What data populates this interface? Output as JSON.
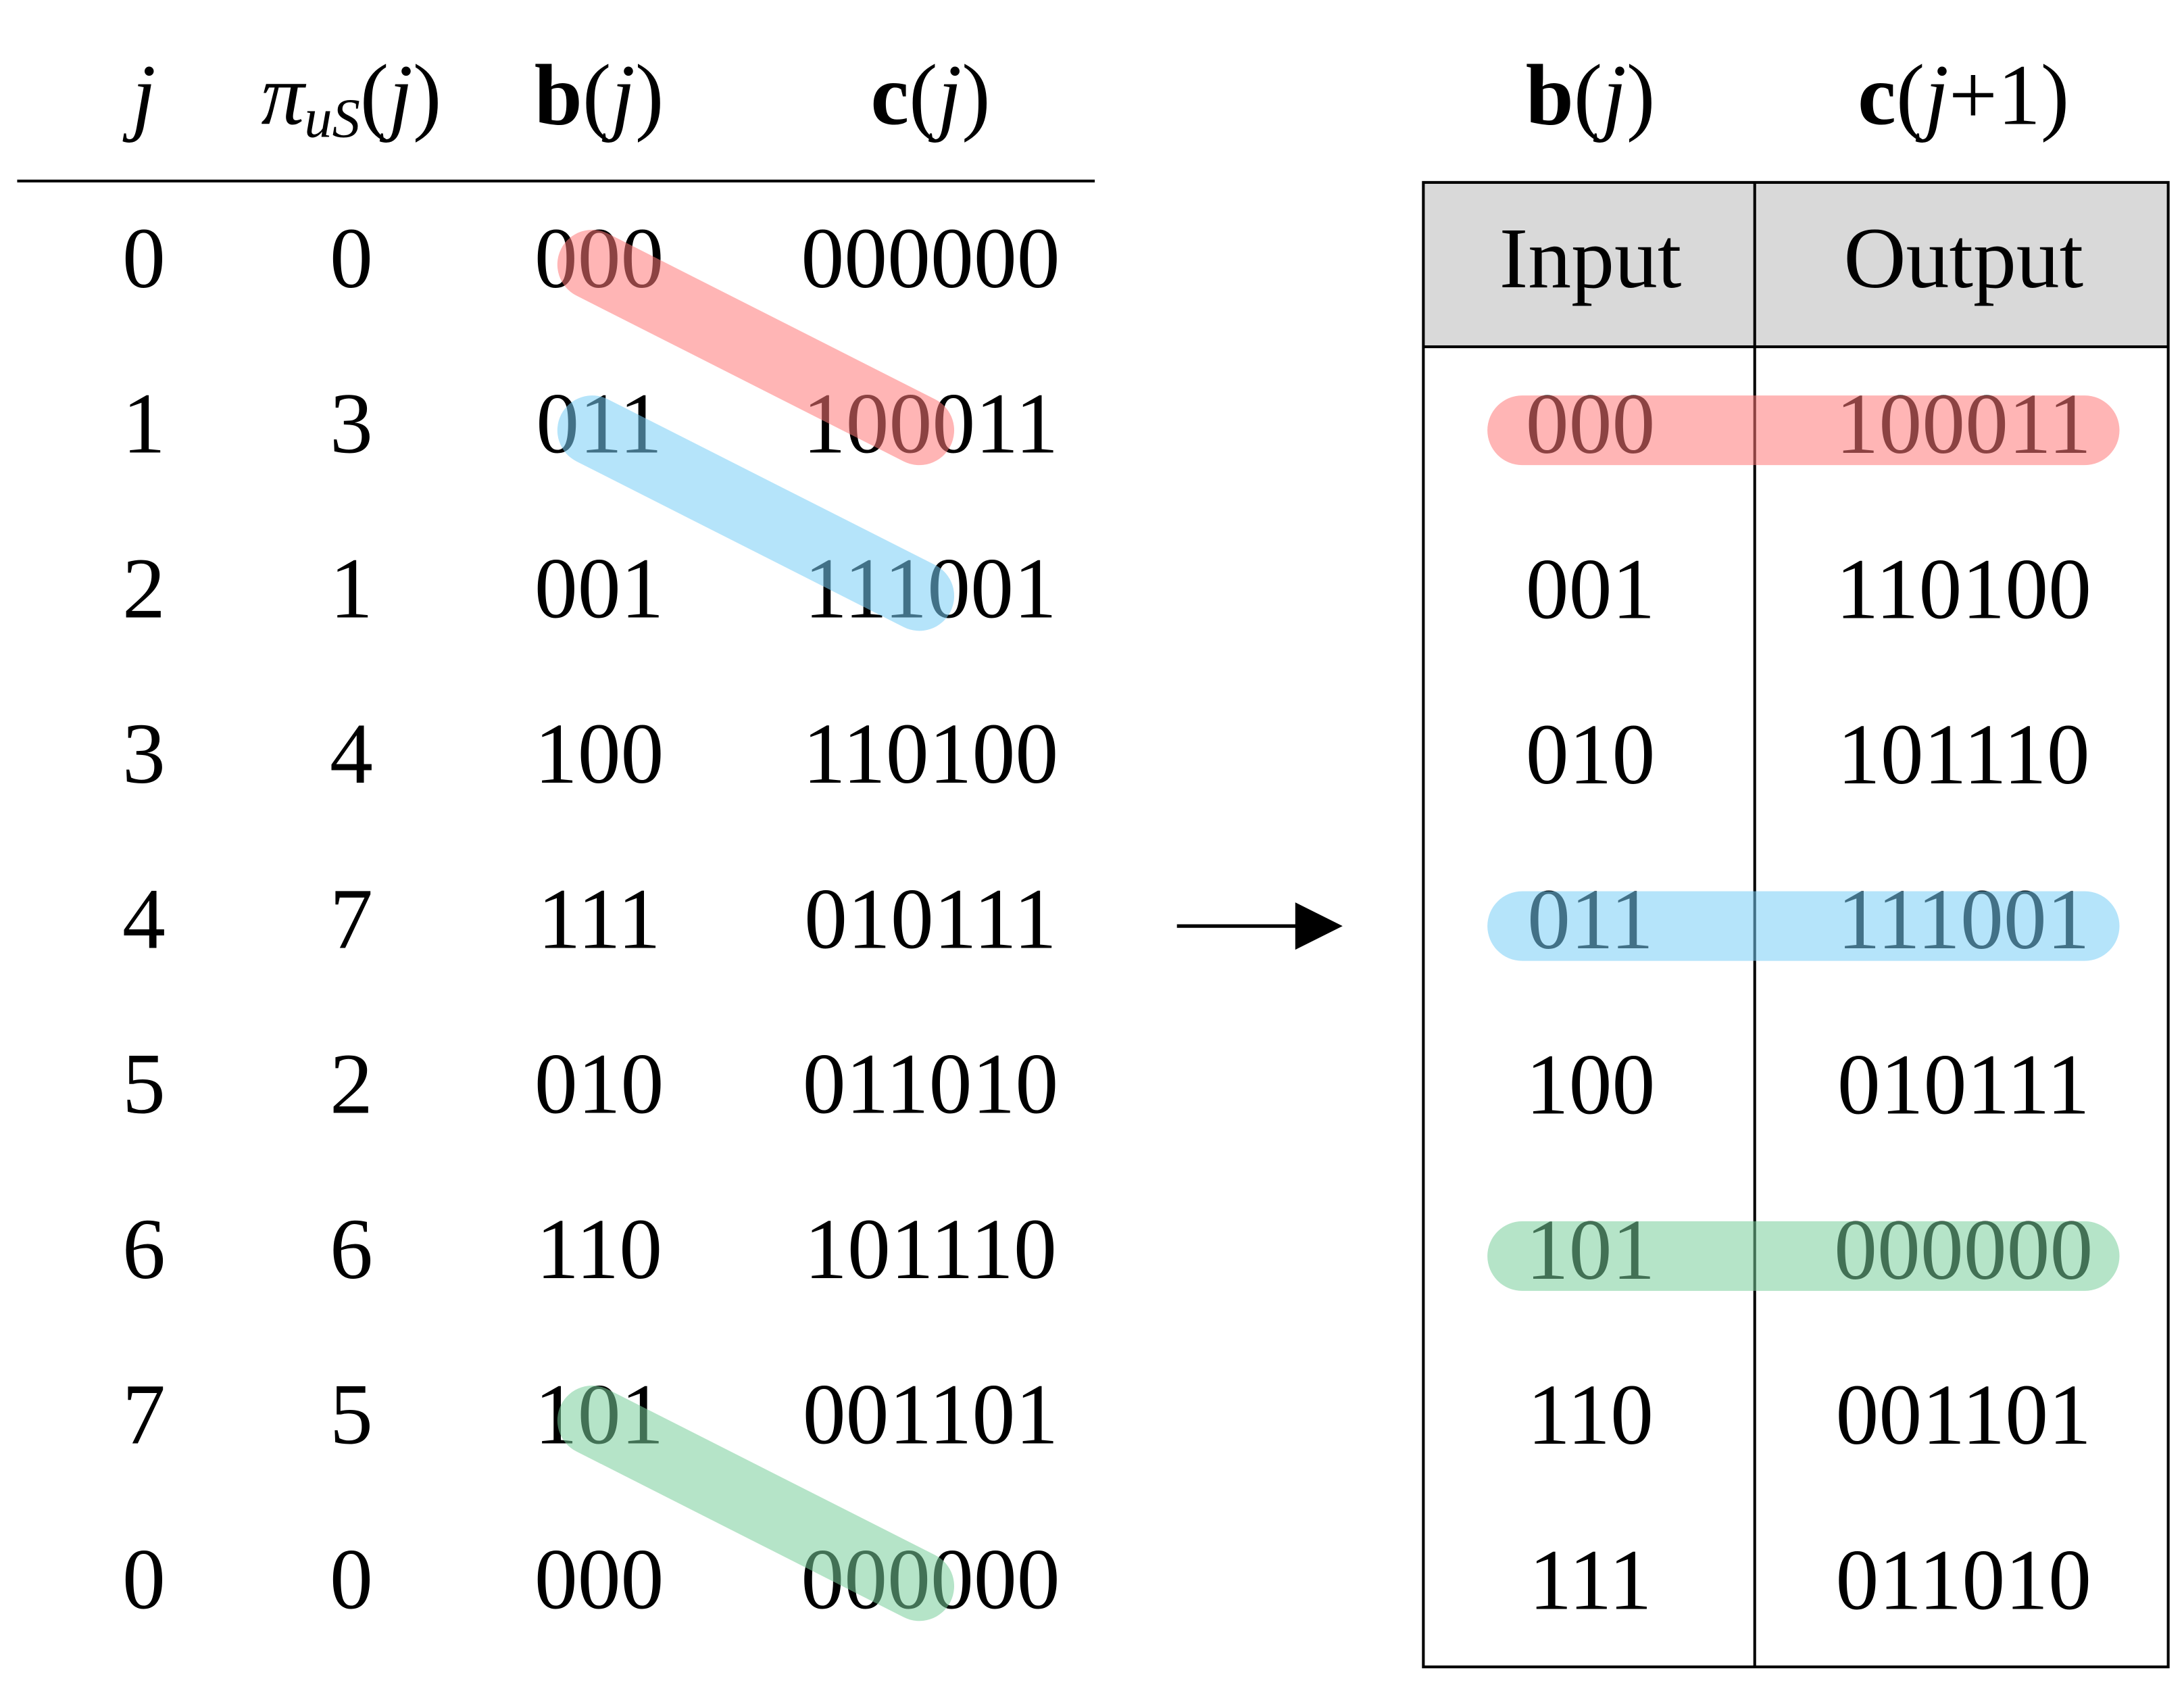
{
  "left_table": {
    "headers": [
      [
        "j"
      ],
      [
        "π",
        "uS",
        "(",
        "j",
        ")"
      ],
      [
        "b",
        "(",
        "j",
        ")"
      ],
      [
        "c",
        "(",
        "j",
        ")"
      ]
    ],
    "rows": [
      [
        "0",
        "0",
        "000",
        "000000"
      ],
      [
        "1",
        "3",
        "011",
        "100011"
      ],
      [
        "2",
        "1",
        "001",
        "111001"
      ],
      [
        "3",
        "4",
        "100",
        "110100"
      ],
      [
        "4",
        "7",
        "111",
        "010111"
      ],
      [
        "5",
        "2",
        "010",
        "011010"
      ],
      [
        "6",
        "6",
        "110",
        "101110"
      ],
      [
        "7",
        "5",
        "101",
        "001101"
      ],
      [
        "0",
        "0",
        "000",
        "000000"
      ]
    ]
  },
  "right_table": {
    "column_headers": [
      [
        "b",
        "(",
        "j",
        ")"
      ],
      [
        "c",
        "(",
        "j",
        "+1)"
      ]
    ],
    "header": [
      "Input",
      "Output"
    ],
    "rows": [
      [
        "000",
        "100011"
      ],
      [
        "001",
        "110100"
      ],
      [
        "010",
        "101110"
      ],
      [
        "011",
        "111001"
      ],
      [
        "100",
        "010111"
      ],
      [
        "101",
        "000000"
      ],
      [
        "110",
        "001101"
      ],
      [
        "111",
        "011010"
      ]
    ]
  }
}
